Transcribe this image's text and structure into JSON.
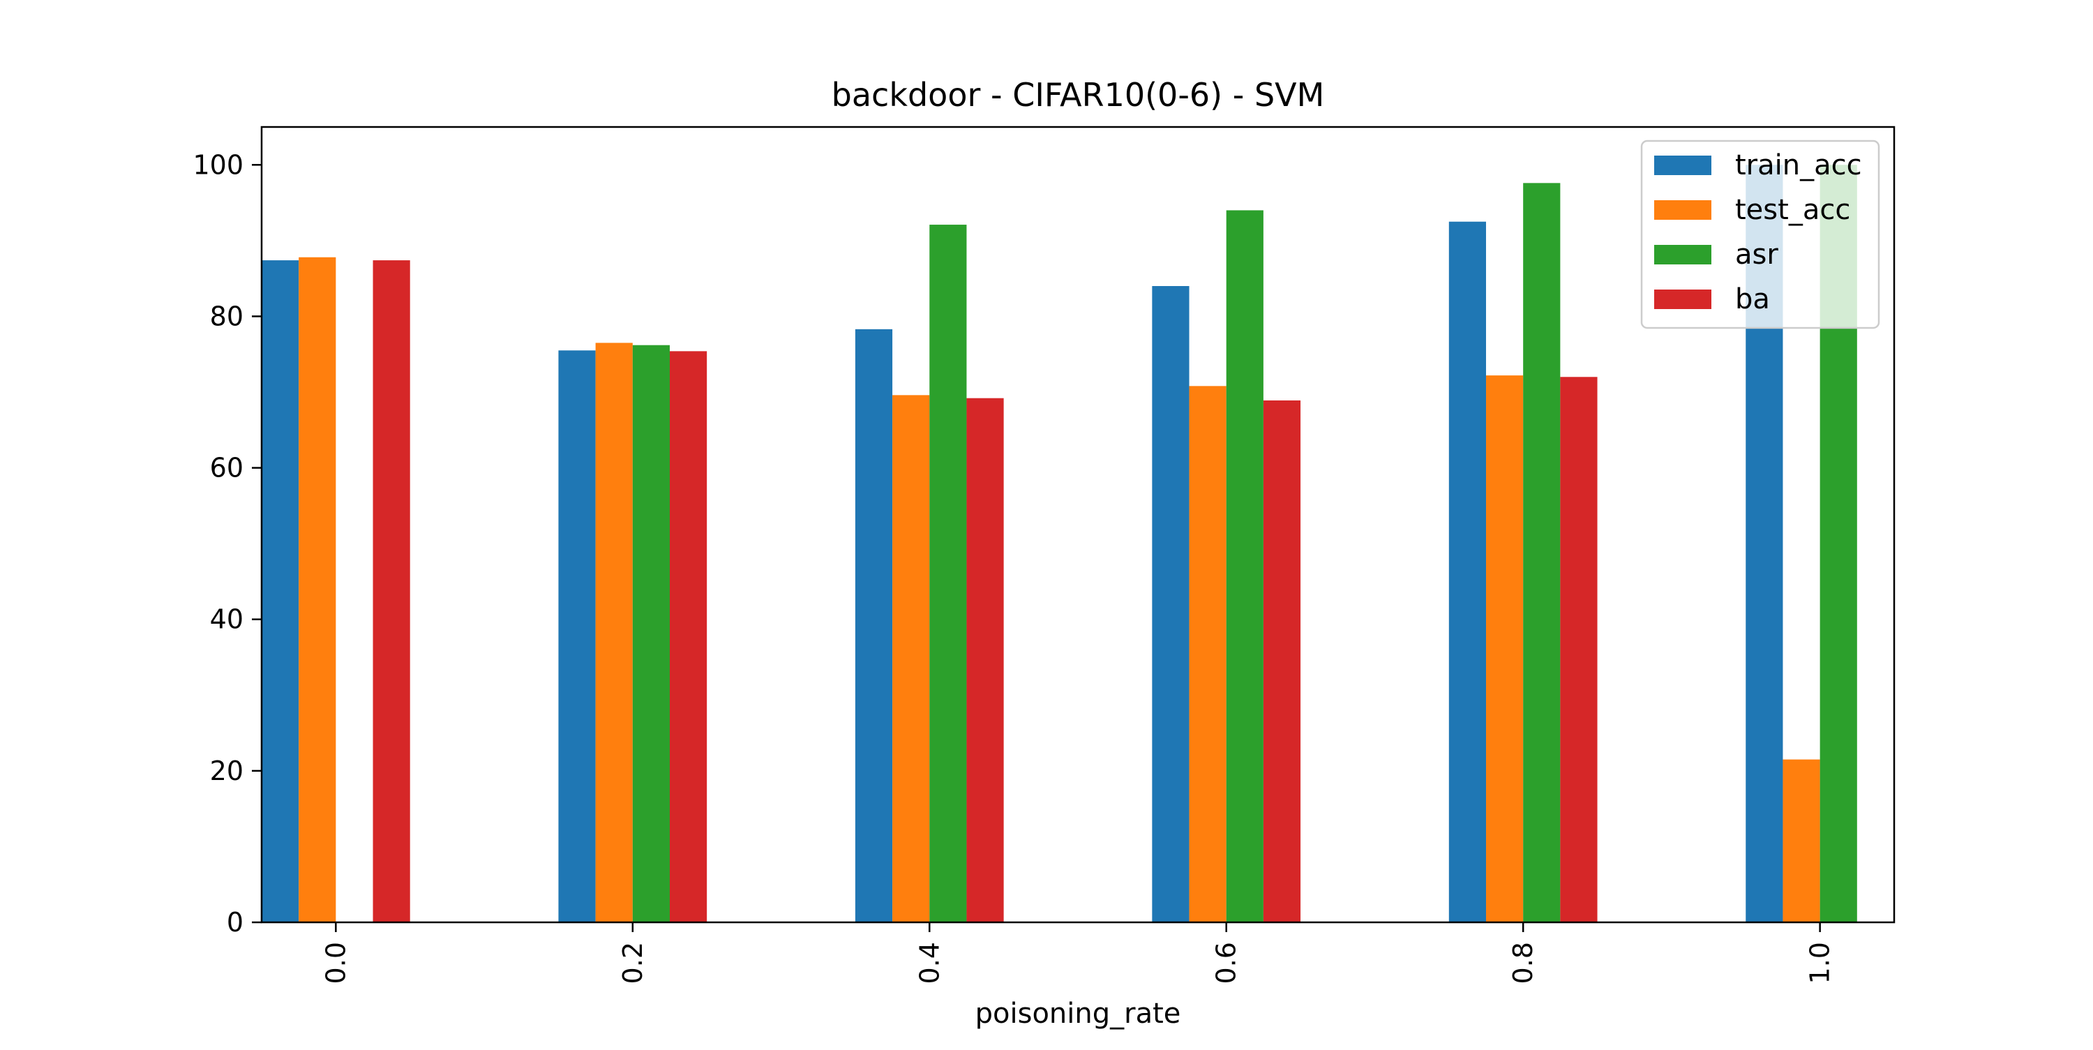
{
  "chart_data": {
    "type": "bar",
    "title": "backdoor - CIFAR10(0-6) - SVM",
    "xlabel": "poisoning_rate",
    "ylabel": "",
    "categories": [
      "0.0",
      "0.2",
      "0.4",
      "0.6",
      "0.8",
      "1.0"
    ],
    "ylim": [
      0,
      105
    ],
    "yticks": [
      0,
      20,
      40,
      60,
      80,
      100
    ],
    "grid": false,
    "legend_position": "top-right",
    "series": [
      {
        "name": "train_acc",
        "color": "#1f77b4",
        "values": [
          87.4,
          75.5,
          78.3,
          84.0,
          92.5,
          100.0
        ]
      },
      {
        "name": "test_acc",
        "color": "#ff7f0e",
        "values": [
          87.8,
          76.5,
          69.6,
          70.8,
          72.2,
          21.5
        ]
      },
      {
        "name": "asr",
        "color": "#2ca02c",
        "values": [
          0,
          76.2,
          92.1,
          94.0,
          97.6,
          100.0
        ]
      },
      {
        "name": "ba",
        "color": "#d62728",
        "values": [
          87.4,
          75.4,
          69.2,
          68.9,
          72.0,
          0
        ]
      }
    ]
  }
}
